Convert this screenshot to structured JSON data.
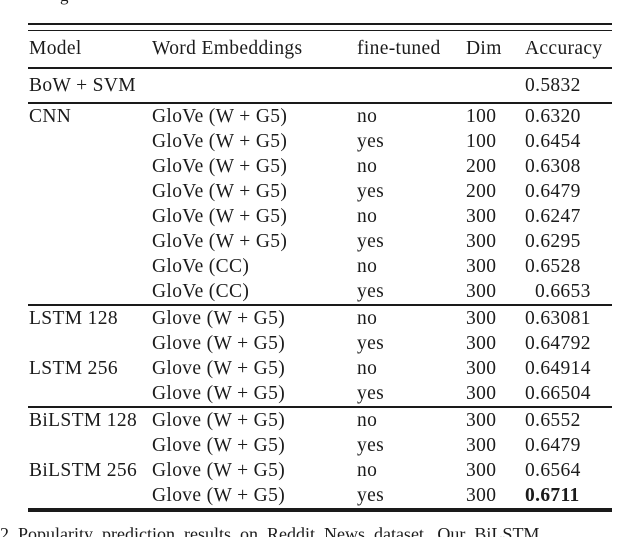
{
  "page": {
    "top_partial_glyph": "g",
    "caption_partial": "2 Popularity prediction results on Reddit News dataset. Our BiLSTM"
  },
  "table": {
    "headers": [
      "Model",
      "Word Embeddings",
      "fine-tuned",
      "Dim",
      "Accuracy"
    ],
    "baseline_section": {
      "rows": [
        {
          "model": "BoW + SVM",
          "embeddings": "",
          "finetuned": "",
          "dim": "",
          "accuracy": "0.5832"
        }
      ]
    },
    "sections": [
      {
        "name": "cnn",
        "rows": [
          {
            "model": "CNN",
            "embeddings": "GloVe (W + G5)",
            "finetuned": "no",
            "dim": "100",
            "accuracy": "0.6320"
          },
          {
            "model": "",
            "embeddings": "GloVe (W + G5)",
            "finetuned": "yes",
            "dim": "100",
            "accuracy": "0.6454"
          },
          {
            "model": "",
            "embeddings": "GloVe (W + G5)",
            "finetuned": "no",
            "dim": "200",
            "accuracy": "0.6308"
          },
          {
            "model": "",
            "embeddings": "GloVe (W + G5)",
            "finetuned": "yes",
            "dim": "200",
            "accuracy": "0.6479"
          },
          {
            "model": "",
            "embeddings": "GloVe (W + G5)",
            "finetuned": "no",
            "dim": "300",
            "accuracy": "0.6247"
          },
          {
            "model": "",
            "embeddings": "GloVe (W + G5)",
            "finetuned": "yes",
            "dim": "300",
            "accuracy": "0.6295"
          },
          {
            "model": "",
            "embeddings": "GloVe (CC)",
            "finetuned": "no",
            "dim": "300",
            "accuracy": "0.6528"
          },
          {
            "model": "",
            "embeddings": "GloVe (CC)",
            "finetuned": "yes",
            "dim": "300",
            "accuracy": "0.6653",
            "shift_accuracy": true
          }
        ]
      },
      {
        "name": "lstm",
        "rows": [
          {
            "model": "LSTM 128",
            "embeddings": "Glove (W + G5)",
            "finetuned": "no",
            "dim": "300",
            "accuracy": "0.63081"
          },
          {
            "model": "",
            "embeddings": "Glove (W + G5)",
            "finetuned": "yes",
            "dim": "300",
            "accuracy": "0.64792"
          },
          {
            "model": "LSTM 256",
            "embeddings": "Glove (W + G5)",
            "finetuned": "no",
            "dim": "300",
            "accuracy": "0.64914"
          },
          {
            "model": "",
            "embeddings": "Glove (W + G5)",
            "finetuned": "yes",
            "dim": "300",
            "accuracy": "0.66504"
          }
        ]
      },
      {
        "name": "bilstm",
        "rows": [
          {
            "model": "BiLSTM 128",
            "embeddings": "Glove (W + G5)",
            "finetuned": "no",
            "dim": "300",
            "accuracy": "0.6552"
          },
          {
            "model": "",
            "embeddings": "Glove (W + G5)",
            "finetuned": "yes",
            "dim": "300",
            "accuracy": "0.6479"
          },
          {
            "model": "BiLSTM 256",
            "embeddings": "Glove (W + G5)",
            "finetuned": "no",
            "dim": "300",
            "accuracy": "0.6564"
          },
          {
            "model": "",
            "embeddings": "Glove (W + G5)",
            "finetuned": "yes",
            "dim": "300",
            "accuracy": "0.6711",
            "bold_accuracy": true
          }
        ]
      }
    ]
  }
}
